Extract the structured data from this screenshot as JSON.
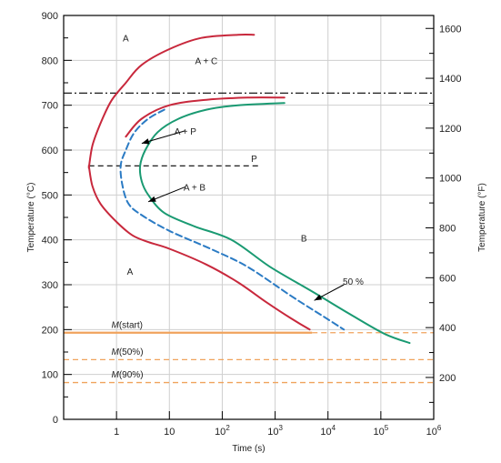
{
  "chart_data": {
    "type": "line",
    "title": "",
    "xlabel": "Time (s)",
    "ylabel_left": "Temperature (°C)",
    "ylabel_right": "Temperature (°F)",
    "x_scale": "log",
    "xlim": [
      0.1,
      1000000
    ],
    "ylim": [
      0,
      900
    ],
    "x_ticks": [
      {
        "value": 1,
        "label": "1"
      },
      {
        "value": 10,
        "label": "10"
      },
      {
        "value": 100,
        "label": "10",
        "exp": "2"
      },
      {
        "value": 1000,
        "label": "10",
        "exp": "3"
      },
      {
        "value": 10000,
        "label": "10",
        "exp": "4"
      },
      {
        "value": 100000,
        "label": "10",
        "exp": "5"
      },
      {
        "value": 1000000,
        "label": "10",
        "exp": "6"
      }
    ],
    "y_ticks_left": [
      {
        "value": 0,
        "label": "0"
      },
      {
        "value": 100,
        "label": "100"
      },
      {
        "value": 200,
        "label": "200"
      },
      {
        "value": 300,
        "label": "300"
      },
      {
        "value": 400,
        "label": "400"
      },
      {
        "value": 500,
        "label": "500"
      },
      {
        "value": 600,
        "label": "600"
      },
      {
        "value": 700,
        "label": "700"
      },
      {
        "value": 800,
        "label": "800"
      },
      {
        "value": 900,
        "label": "900"
      }
    ],
    "y_ticks_right": [
      {
        "value": 200,
        "label": "200"
      },
      {
        "value": 400,
        "label": "400"
      },
      {
        "value": 600,
        "label": "600"
      },
      {
        "value": 800,
        "label": "800"
      },
      {
        "value": 1000,
        "label": "1000"
      },
      {
        "value": 1200,
        "label": "1200"
      },
      {
        "value": 1400,
        "label": "1400"
      },
      {
        "value": 1600,
        "label": "1600"
      }
    ],
    "grid": true,
    "horizontal_lines": [
      {
        "y": 727,
        "style": "dash-dot",
        "color": "#000000"
      },
      {
        "y": 565,
        "style": "dashed",
        "color": "#000000",
        "x_range": [
          0.3,
          500
        ]
      },
      {
        "y": 193,
        "style": "solid",
        "color": "#f0a35c",
        "x_range": [
          0.1,
          5000
        ]
      },
      {
        "y": 193,
        "style": "dashed",
        "color": "#f0a35c",
        "x_range": [
          5000,
          1000000
        ]
      },
      {
        "y": 133,
        "style": "dashed",
        "color": "#f0a35c"
      },
      {
        "y": 82,
        "style": "dashed",
        "color": "#f0a35c"
      }
    ],
    "series": [
      {
        "style": "solid",
        "color": "#c8283c",
        "points": [
          [
            0.3,
            560
          ],
          [
            0.35,
            610
          ],
          [
            0.5,
            660
          ],
          [
            0.8,
            710
          ],
          [
            1.5,
            750
          ],
          [
            3,
            790
          ],
          [
            10,
            825
          ],
          [
            40,
            850
          ],
          [
            200,
            857
          ],
          [
            400,
            857
          ]
        ]
      },
      {
        "style": "solid",
        "color": "#c8283c",
        "points": [
          [
            1.5,
            630
          ],
          [
            3,
            670
          ],
          [
            10,
            700
          ],
          [
            50,
            712
          ],
          [
            300,
            717
          ],
          [
            1500,
            717
          ]
        ]
      },
      {
        "style": "solid",
        "color": "#c8283c",
        "points": [
          [
            0.3,
            565
          ],
          [
            0.35,
            520
          ],
          [
            0.5,
            480
          ],
          [
            1,
            440
          ],
          [
            2,
            410
          ],
          [
            4,
            395
          ],
          [
            10,
            380
          ],
          [
            50,
            345
          ],
          [
            200,
            305
          ],
          [
            700,
            260
          ],
          [
            2000,
            225
          ],
          [
            4500,
            200
          ]
        ]
      },
      {
        "style": "dashed",
        "color": "#2b7bc4",
        "points": [
          [
            8,
            690
          ],
          [
            4,
            670
          ],
          [
            2.2,
            640
          ],
          [
            1.5,
            600
          ],
          [
            1.2,
            565
          ],
          [
            1.3,
            520
          ],
          [
            1.7,
            480
          ],
          [
            3,
            455
          ],
          [
            10,
            420
          ],
          [
            60,
            380
          ],
          [
            300,
            340
          ],
          [
            2000,
            275
          ],
          [
            8000,
            230
          ],
          [
            20000,
            200
          ]
        ]
      },
      {
        "style": "solid",
        "color": "#1a9a72",
        "points": [
          [
            1500,
            705
          ],
          [
            200,
            700
          ],
          [
            50,
            690
          ],
          [
            15,
            670
          ],
          [
            6,
            640
          ],
          [
            3.5,
            600
          ],
          [
            2.8,
            565
          ],
          [
            3,
            530
          ],
          [
            4,
            500
          ],
          [
            8,
            460
          ],
          [
            30,
            430
          ],
          [
            150,
            400
          ],
          [
            800,
            340
          ],
          [
            5000,
            285
          ],
          [
            30000,
            230
          ],
          [
            120000,
            190
          ],
          [
            350000,
            170
          ]
        ]
      }
    ],
    "region_labels": [
      {
        "text": "A",
        "x": 1.5,
        "y": 850
      },
      {
        "text": "A + C",
        "x": 50,
        "y": 800
      },
      {
        "text": "A + P",
        "x": 20,
        "y": 643
      },
      {
        "text": "P",
        "x": 400,
        "y": 582
      },
      {
        "text": "A + B",
        "x": 30,
        "y": 518
      },
      {
        "text": "B",
        "x": 3500,
        "y": 404
      },
      {
        "text": "A",
        "x": 1.8,
        "y": 330
      },
      {
        "text": "50 %",
        "x": 30000,
        "y": 308
      }
    ],
    "martensite_labels": [
      {
        "symbol": "M",
        "suffix": "(start)",
        "x": 0.8,
        "y": 212
      },
      {
        "symbol": "M",
        "suffix": "(50%)",
        "x": 0.8,
        "y": 152
      },
      {
        "symbol": "M",
        "suffix": "(90%)",
        "x": 0.8,
        "y": 101
      }
    ],
    "arrows": [
      {
        "from": [
          20,
          643
        ],
        "to": [
          3,
          615
        ]
      },
      {
        "from": [
          20,
          518
        ],
        "to": [
          4,
          485
        ]
      },
      {
        "from": [
          20000,
          300
        ],
        "to": [
          5500,
          265
        ]
      }
    ]
  }
}
